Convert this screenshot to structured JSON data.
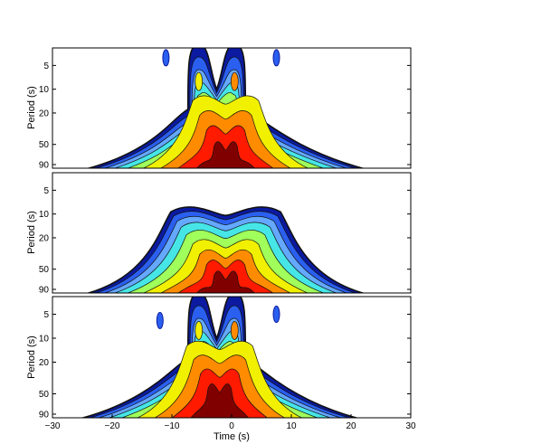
{
  "chart_data": [
    {
      "type": "contour",
      "panel": "top",
      "ylabel": "Period (s)",
      "xlim": [
        -30,
        30
      ],
      "y_scale": "log",
      "ylim": [
        3,
        100
      ],
      "y_ticks": [
        5,
        10,
        20,
        50,
        90
      ],
      "y_tick_labels": [
        "5",
        "10",
        "20",
        "50",
        "90"
      ],
      "colormap": "jet",
      "levels": 12,
      "features": {
        "base_center_time": -1,
        "base_half_width_at_90s": 24,
        "peak_period": 70,
        "lobes": [
          {
            "time": -5.5,
            "reaches_period": 3
          },
          {
            "time": 0.5,
            "reaches_period": 3
          }
        ],
        "isolated_blobs": [
          {
            "time": -11,
            "period": 4
          },
          {
            "time": 7.5,
            "period": 4
          }
        ]
      }
    },
    {
      "type": "contour",
      "panel": "middle",
      "ylabel": "Period (s)",
      "xlim": [
        -30,
        30
      ],
      "y_scale": "log",
      "ylim": [
        3,
        100
      ],
      "y_ticks": [
        5,
        10,
        20,
        50,
        90
      ],
      "y_tick_labels": [
        "5",
        "10",
        "20",
        "50",
        "90"
      ],
      "colormap": "jet",
      "levels": 12,
      "features": {
        "base_center_time": -1,
        "base_half_width_at_90s": 24,
        "peak_period": 70,
        "upper_edge_period": 8,
        "twin_bumps": [
          -7,
          6
        ]
      }
    },
    {
      "type": "contour",
      "panel": "bottom",
      "ylabel": "Period (s)",
      "xlabel": "Time (s)",
      "xlim": [
        -30,
        30
      ],
      "x_ticks": [
        -30,
        -20,
        -10,
        0,
        10,
        20,
        30
      ],
      "x_tick_labels": [
        "−30",
        "−20",
        "−10",
        "0",
        "10",
        "20",
        "30"
      ],
      "y_scale": "log",
      "ylim": [
        3,
        100
      ],
      "y_ticks": [
        5,
        10,
        20,
        50,
        90
      ],
      "y_tick_labels": [
        "5",
        "10",
        "20",
        "50",
        "90"
      ],
      "colormap": "jet",
      "levels": 12,
      "features": {
        "base_center_time": -2,
        "base_half_width_at_90s": 24,
        "peak_period": 55,
        "lobes": [
          {
            "time": -5.5,
            "reaches_period": 3
          },
          {
            "time": 0.5,
            "reaches_period": 3
          }
        ],
        "isolated_blobs": [
          {
            "time": -12,
            "period": 6
          },
          {
            "time": 7.5,
            "period": 5
          }
        ]
      }
    }
  ],
  "colors": {
    "outline": "#111111",
    "dark_blue": "#0b1aa0",
    "blue": "#2a5ff0",
    "light_blue": "#64a8ff",
    "cyan": "#46e6e6",
    "green": "#a0ff5a",
    "yellow": "#f0f000",
    "orange": "#ff8c00",
    "red": "#ff1a00",
    "dark_red": "#800000"
  }
}
